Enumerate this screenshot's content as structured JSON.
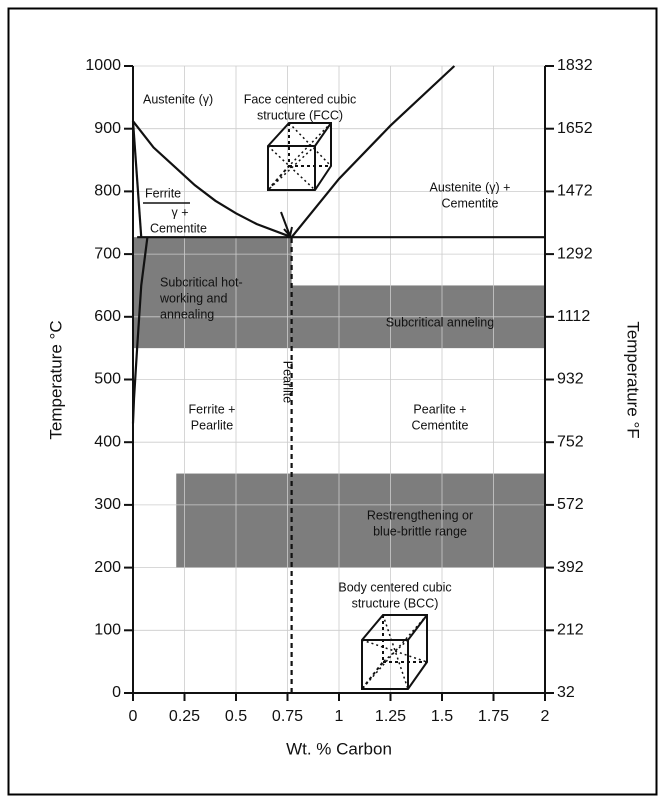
{
  "chart_data": {
    "type": "phase-diagram",
    "xlabel": "Wt. % Carbon",
    "ylabel": "Temperature °C",
    "y2label": "Temperature °F",
    "xlim": [
      0,
      2
    ],
    "xticks": [
      0,
      0.25,
      0.5,
      0.75,
      1,
      1.25,
      1.5,
      1.75,
      2
    ],
    "ylim": [
      0,
      1000
    ],
    "yticks": [
      0,
      100,
      200,
      300,
      400,
      500,
      600,
      700,
      800,
      900,
      1000
    ],
    "y2lim": [
      32,
      1832
    ],
    "y2ticks": [
      32,
      212,
      392,
      572,
      752,
      932,
      1112,
      1292,
      1472,
      1652,
      1832
    ],
    "grid": true,
    "line_color": "#111111",
    "band_color": "#7d7d7d",
    "bands": [
      {
        "x": [
          0,
          0.77
        ],
        "y": [
          550,
          727
        ]
      },
      {
        "x": [
          0.77,
          2
        ],
        "y": [
          550,
          650
        ]
      },
      {
        "x": [
          0.21,
          2
        ],
        "y": [
          200,
          350
        ]
      }
    ],
    "lines": [
      {
        "x": [
          0,
          0.1,
          0.2,
          0.3,
          0.4,
          0.5,
          0.6,
          0.77
        ],
        "values": [
          912,
          870,
          840,
          810,
          785,
          765,
          748,
          727
        ],
        "dashed": false
      },
      {
        "x": [
          0.77,
          1,
          1.25,
          1.56
        ],
        "values": [
          727,
          820,
          905,
          1000
        ],
        "dashed": false
      },
      {
        "x": [
          0.02,
          2
        ],
        "values": [
          727,
          727
        ],
        "dashed": false
      },
      {
        "x": [
          0,
          0.04
        ],
        "values": [
          912,
          727
        ],
        "dashed": false
      },
      {
        "x": [
          0.07,
          0.04,
          0.02,
          0.005,
          0
        ],
        "values": [
          727,
          650,
          550,
          470,
          430
        ],
        "dashed": false
      },
      {
        "x": [
          0.77,
          0.77
        ],
        "values": [
          0,
          727
        ],
        "dashed": true
      }
    ],
    "annotations": [
      [
        "Austenite (γ)"
      ],
      [
        "Face centered cubic",
        "structure (FCC)"
      ],
      [
        "Ferrite"
      ],
      [
        "γ +"
      ],
      [
        "Cementite"
      ],
      [
        "Austenite (γ) +",
        "Cementite"
      ],
      [
        "Subcritical hot-",
        "working and",
        "annealing"
      ],
      [
        "Subcritical anneling"
      ],
      [
        "Ferrite +",
        "Pearlite"
      ],
      [
        "Pearlite"
      ],
      [
        "Pearlite +",
        "Cementite"
      ],
      [
        "Restrengthening or",
        "blue-brittle range"
      ],
      [
        "Body centered cubic",
        "structure (BCC)"
      ]
    ]
  }
}
